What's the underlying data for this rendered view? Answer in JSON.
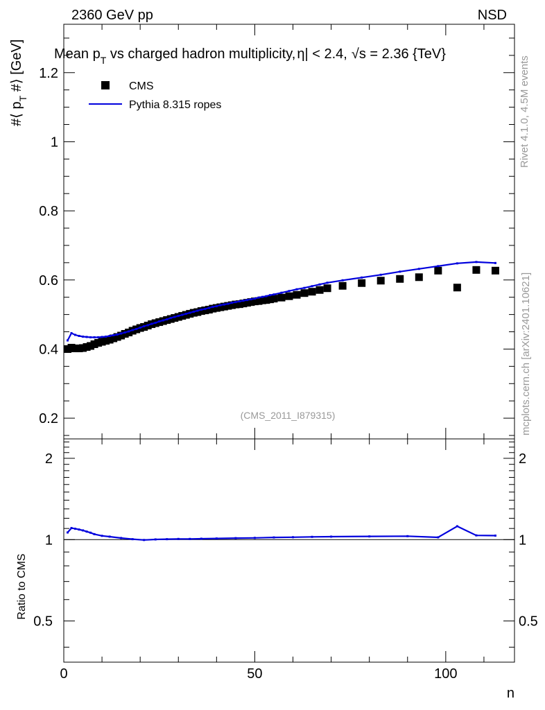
{
  "header": {
    "energy_label": "2360 GeV pp",
    "event_class": "NSD"
  },
  "side_labels": {
    "rivet": "Rivet 4.1.0,  4.5M events",
    "mcplots": "mcplots.cern.ch [arXiv:2401.10621]"
  },
  "chart_data": [
    {
      "type": "scatter",
      "title": "Mean p_T vs charged hadron multiplicity, |η| < 2.4, √s = 2.36 {TeV}",
      "title_parts": {
        "a": "Mean p",
        "sub_t": "T",
        "b": " vs charged hadron multiplicity,",
        "c": "η| < 2.4,",
        "d": "s = 2.36 {TeV}"
      },
      "ylabel": "#⟨ p_T #⟩ [GeV]",
      "ylabel_parts": {
        "a": "#⟨ p",
        "sub_t": "T",
        "b": " #⟩ [GeV]"
      },
      "xlabel": "n",
      "xlim": [
        0,
        118
      ],
      "ylim": [
        0.14,
        1.34
      ],
      "yticks": [
        0.2,
        0.4,
        0.6,
        0.8,
        1,
        1.2
      ],
      "ytick_labels": [
        "0.2",
        "0.4",
        "0.6",
        "0.8",
        "1",
        "1.2"
      ],
      "watermark": "(CMS_2011_I879315)",
      "legend": {
        "placement": "top-left",
        "entries": [
          {
            "label": "CMS",
            "marker": "square",
            "color": "#000000"
          },
          {
            "label": "Pythia 8.315 ropes",
            "marker": "line",
            "color": "#0000dd"
          }
        ]
      },
      "series": [
        {
          "name": "CMS",
          "color": "#000000",
          "x": [
            1,
            2,
            3,
            4,
            5,
            6,
            7,
            8,
            9,
            10,
            11,
            12,
            13,
            14,
            15,
            16,
            17,
            18,
            19,
            20,
            21,
            22,
            23,
            24,
            25,
            26,
            27,
            28,
            29,
            30,
            31,
            32,
            33,
            34,
            35,
            36,
            37,
            38,
            39,
            40,
            41,
            42,
            43,
            44,
            45,
            46,
            47,
            48,
            49,
            50,
            51,
            52,
            53,
            54,
            55,
            57,
            59,
            61,
            63,
            65,
            67,
            69,
            73,
            78,
            83,
            88,
            93,
            98,
            103,
            108,
            113
          ],
          "y": [
            0.4,
            0.404,
            0.402,
            0.402,
            0.403,
            0.406,
            0.409,
            0.414,
            0.418,
            0.421,
            0.424,
            0.427,
            0.431,
            0.435,
            0.439,
            0.444,
            0.448,
            0.453,
            0.457,
            0.461,
            0.464,
            0.468,
            0.472,
            0.475,
            0.478,
            0.481,
            0.484,
            0.487,
            0.49,
            0.493,
            0.496,
            0.499,
            0.502,
            0.505,
            0.507,
            0.51,
            0.512,
            0.514,
            0.517,
            0.519,
            0.521,
            0.523,
            0.525,
            0.527,
            0.529,
            0.53,
            0.532,
            0.534,
            0.536,
            0.538,
            0.539,
            0.541,
            0.542,
            0.544,
            0.546,
            0.549,
            0.553,
            0.557,
            0.562,
            0.566,
            0.571,
            0.576,
            0.583,
            0.591,
            0.598,
            0.603,
            0.608,
            0.627,
            0.578,
            0.629,
            0.627
          ]
        },
        {
          "name": "Pythia 8.315 ropes",
          "color": "#0000dd",
          "x": [
            1,
            2,
            3,
            4,
            5,
            6,
            7,
            8,
            9,
            10,
            11,
            12,
            13,
            14,
            15,
            16,
            17,
            18,
            19,
            20,
            21,
            22,
            23,
            24,
            25,
            26,
            27,
            28,
            29,
            30,
            31,
            32,
            33,
            34,
            35,
            36,
            37,
            38,
            39,
            40,
            41,
            42,
            43,
            44,
            45,
            46,
            47,
            48,
            49,
            50,
            51,
            52,
            53,
            54,
            55,
            57,
            59,
            61,
            63,
            65,
            67,
            69,
            73,
            78,
            83,
            88,
            93,
            98,
            103,
            108,
            113
          ],
          "y": [
            0.425,
            0.446,
            0.441,
            0.438,
            0.436,
            0.435,
            0.434,
            0.434,
            0.434,
            0.435,
            0.436,
            0.438,
            0.44,
            0.442,
            0.445,
            0.448,
            0.451,
            0.455,
            0.458,
            0.462,
            0.466,
            0.469,
            0.473,
            0.476,
            0.48,
            0.483,
            0.486,
            0.49,
            0.493,
            0.496,
            0.499,
            0.502,
            0.505,
            0.508,
            0.511,
            0.514,
            0.516,
            0.519,
            0.522,
            0.524,
            0.527,
            0.529,
            0.531,
            0.534,
            0.536,
            0.538,
            0.54,
            0.542,
            0.544,
            0.546,
            0.549,
            0.551,
            0.553,
            0.556,
            0.558,
            0.563,
            0.568,
            0.573,
            0.577,
            0.582,
            0.587,
            0.592,
            0.599,
            0.607,
            0.615,
            0.624,
            0.632,
            0.64,
            0.648,
            0.652,
            0.649
          ]
        }
      ]
    },
    {
      "type": "line",
      "ylabel": "Ratio to CMS",
      "xlabel": "n",
      "xlim": [
        0,
        118
      ],
      "ylim": [
        0.352,
        2.36
      ],
      "yscale": "log",
      "yticks": [
        0.5,
        1,
        2
      ],
      "ytick_labels": [
        "0.5",
        "1",
        "2"
      ],
      "xticks": [
        0,
        50,
        100
      ],
      "xtick_labels": [
        "0",
        "50",
        "100"
      ],
      "reference_line": 1,
      "series": [
        {
          "name": "Pythia 8.315 ropes / CMS",
          "color": "#0000dd",
          "x": [
            1,
            2,
            3,
            4,
            5,
            6,
            7,
            8,
            10,
            12,
            15,
            18,
            21,
            24,
            27,
            30,
            33,
            36,
            40,
            45,
            50,
            55,
            60,
            65,
            70,
            80,
            90,
            98,
            103,
            108,
            113
          ],
          "y": [
            1.063,
            1.104,
            1.097,
            1.09,
            1.082,
            1.071,
            1.061,
            1.048,
            1.033,
            1.026,
            1.014,
            1.004,
            0.997,
            1.002,
            1.004,
            1.006,
            1.006,
            1.008,
            1.01,
            1.013,
            1.015,
            1.019,
            1.021,
            1.024,
            1.026,
            1.028,
            1.03,
            1.02,
            1.121,
            1.037,
            1.035
          ]
        }
      ]
    }
  ]
}
